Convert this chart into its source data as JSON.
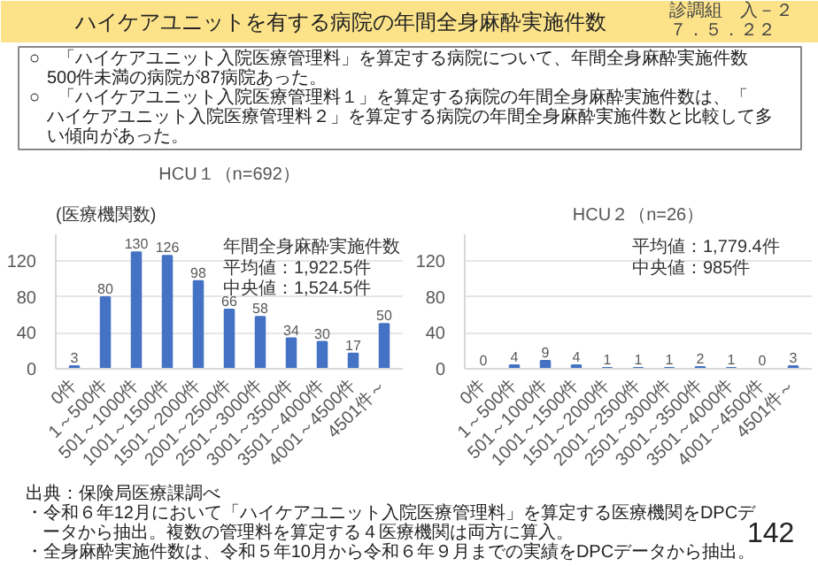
{
  "chart_data": [
    {
      "type": "other",
      "title": "ハイケアユニットを有する病院の年間全身麻酔実施件数",
      "annotations": [
        "診調組　入－２",
        "７．５．２２"
      ]
    },
    {
      "type": "other",
      "annotations": [
        "○　「ハイケアユニット入院医療管理料」を算定する病院について、年間全身麻酔実施件数500件未満の病院が87病院あった。",
        "○　「ハイケアユニット入院医療管理料１」を算定する病院の年間全身麻酔実施件数は、「ハイケアユニット入院医療管理料２」を算定する病院の年間全身麻酔実施件数と比較して多い傾向があった。"
      ]
    },
    {
      "type": "bar",
      "title": "HCU１（n=692）",
      "ylabel": "(医療機関数)",
      "categories": [
        "0件",
        "1～500件",
        "501～1000件",
        "1001～1500件",
        "1501～2000件",
        "2001～2500件",
        "2501～3000件",
        "3001～3500件",
        "3501～4000件",
        "4001～4500件",
        "4501件～"
      ],
      "values": [
        3,
        80,
        130,
        126,
        98,
        66,
        58,
        34,
        30,
        17,
        50
      ],
      "color": "#4472c4",
      "ylim": [
        0,
        150
      ],
      "yticks": [
        0,
        40,
        80,
        120
      ],
      "grid": "y",
      "data_labels": true,
      "annotations": [
        "年間全身麻酔実施件数",
        "平均値：1,922.5件",
        "中央値：1,524.5件"
      ]
    },
    {
      "type": "bar",
      "title": "HCU２（n=26）",
      "categories": [
        "0件",
        "1～500件",
        "501～1000件",
        "1001～1500件",
        "1501～2000件",
        "2001～2500件",
        "2501～3000件",
        "3001～3500件",
        "3501～4000件",
        "4001～4500件",
        "4501件～"
      ],
      "values": [
        0,
        4,
        9,
        4,
        1,
        1,
        1,
        2,
        1,
        0,
        3
      ],
      "color": "#4472c4",
      "ylim": [
        0,
        150
      ],
      "yticks": [
        0,
        40,
        80,
        120
      ],
      "grid": "y",
      "data_labels": true,
      "annotations": [
        "平均値：1,779.4件",
        "中央値：985件"
      ]
    },
    {
      "type": "other",
      "annotations": [
        "出典：保険局医療課調べ",
        "・令和６年12月において「ハイケアユニット入院医療管理料」を算定する医療機関をDPCデータから抽出。複数の管理料を算定する４医療機関は両方に算入。",
        "・全身麻酔実施件数は、令和５年10月から令和６年９月までの実績をDPCデータから抽出。",
        "142"
      ]
    }
  ]
}
